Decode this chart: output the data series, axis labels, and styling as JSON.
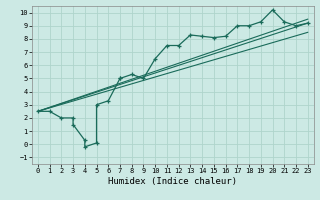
{
  "xlabel": "Humidex (Indice chaleur)",
  "xlim": [
    -0.5,
    23.5
  ],
  "ylim": [
    -1.5,
    10.5
  ],
  "xticks": [
    0,
    1,
    2,
    3,
    4,
    5,
    6,
    7,
    8,
    9,
    10,
    11,
    12,
    13,
    14,
    15,
    16,
    17,
    18,
    19,
    20,
    21,
    22,
    23
  ],
  "yticks": [
    -1,
    0,
    1,
    2,
    3,
    4,
    5,
    6,
    7,
    8,
    9,
    10
  ],
  "bg_color": "#cce9e4",
  "line_color": "#1a6b5a",
  "grid_color": "#afd4cc",
  "scatter_x": [
    0,
    1,
    2,
    3,
    3,
    4,
    4,
    5,
    5,
    6,
    7,
    7,
    8,
    9,
    10,
    11,
    12,
    13,
    14,
    15,
    16,
    17,
    18,
    19,
    20,
    21,
    22,
    23
  ],
  "scatter_y": [
    2.5,
    2.5,
    2.0,
    2.0,
    1.5,
    0.3,
    -0.2,
    0.1,
    3.0,
    3.3,
    5.0,
    5.0,
    5.3,
    5.0,
    6.5,
    7.5,
    7.5,
    8.3,
    8.2,
    8.1,
    8.2,
    9.0,
    9.0,
    9.3,
    10.2,
    9.3,
    9.0,
    9.2
  ],
  "line1_x": [
    0,
    23
  ],
  "line1_y": [
    2.5,
    9.2
  ],
  "line2_x": [
    0,
    23
  ],
  "line2_y": [
    2.5,
    9.5
  ],
  "line3_x": [
    0,
    23
  ],
  "line3_y": [
    2.5,
    8.5
  ]
}
